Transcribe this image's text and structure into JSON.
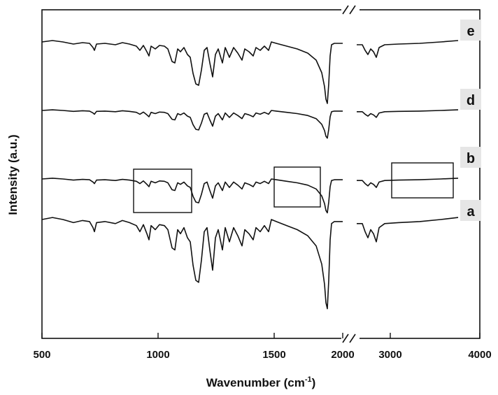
{
  "chart_data": {
    "type": "line",
    "title": "",
    "xlabel": "Wavenumber (cm",
    "xlabel_superscript": "-1",
    "xlabel_suffix": ")",
    "ylabel": "Intensity (a.u.)",
    "x_ticks": [
      "500",
      "1000",
      "1500",
      "2000",
      "3000",
      "4000"
    ],
    "x_axis": "reversed order ignored; broken axis between 1800 and ~2600 cm-1",
    "y_ticks_shown": false,
    "grid": false,
    "series": [
      {
        "name": "e",
        "offset": 3
      },
      {
        "name": "d",
        "offset": 2
      },
      {
        "name": "b",
        "offset": 1
      },
      {
        "name": "a",
        "offset": 0
      }
    ],
    "annotations": [
      {
        "kind": "box",
        "x_range": [
          900,
          1150
        ],
        "series": "b"
      },
      {
        "kind": "box",
        "x_range": [
          1500,
          1700
        ],
        "series": "b"
      },
      {
        "kind": "box",
        "x_range": [
          3100,
          3700
        ],
        "series": "b"
      }
    ]
  }
}
